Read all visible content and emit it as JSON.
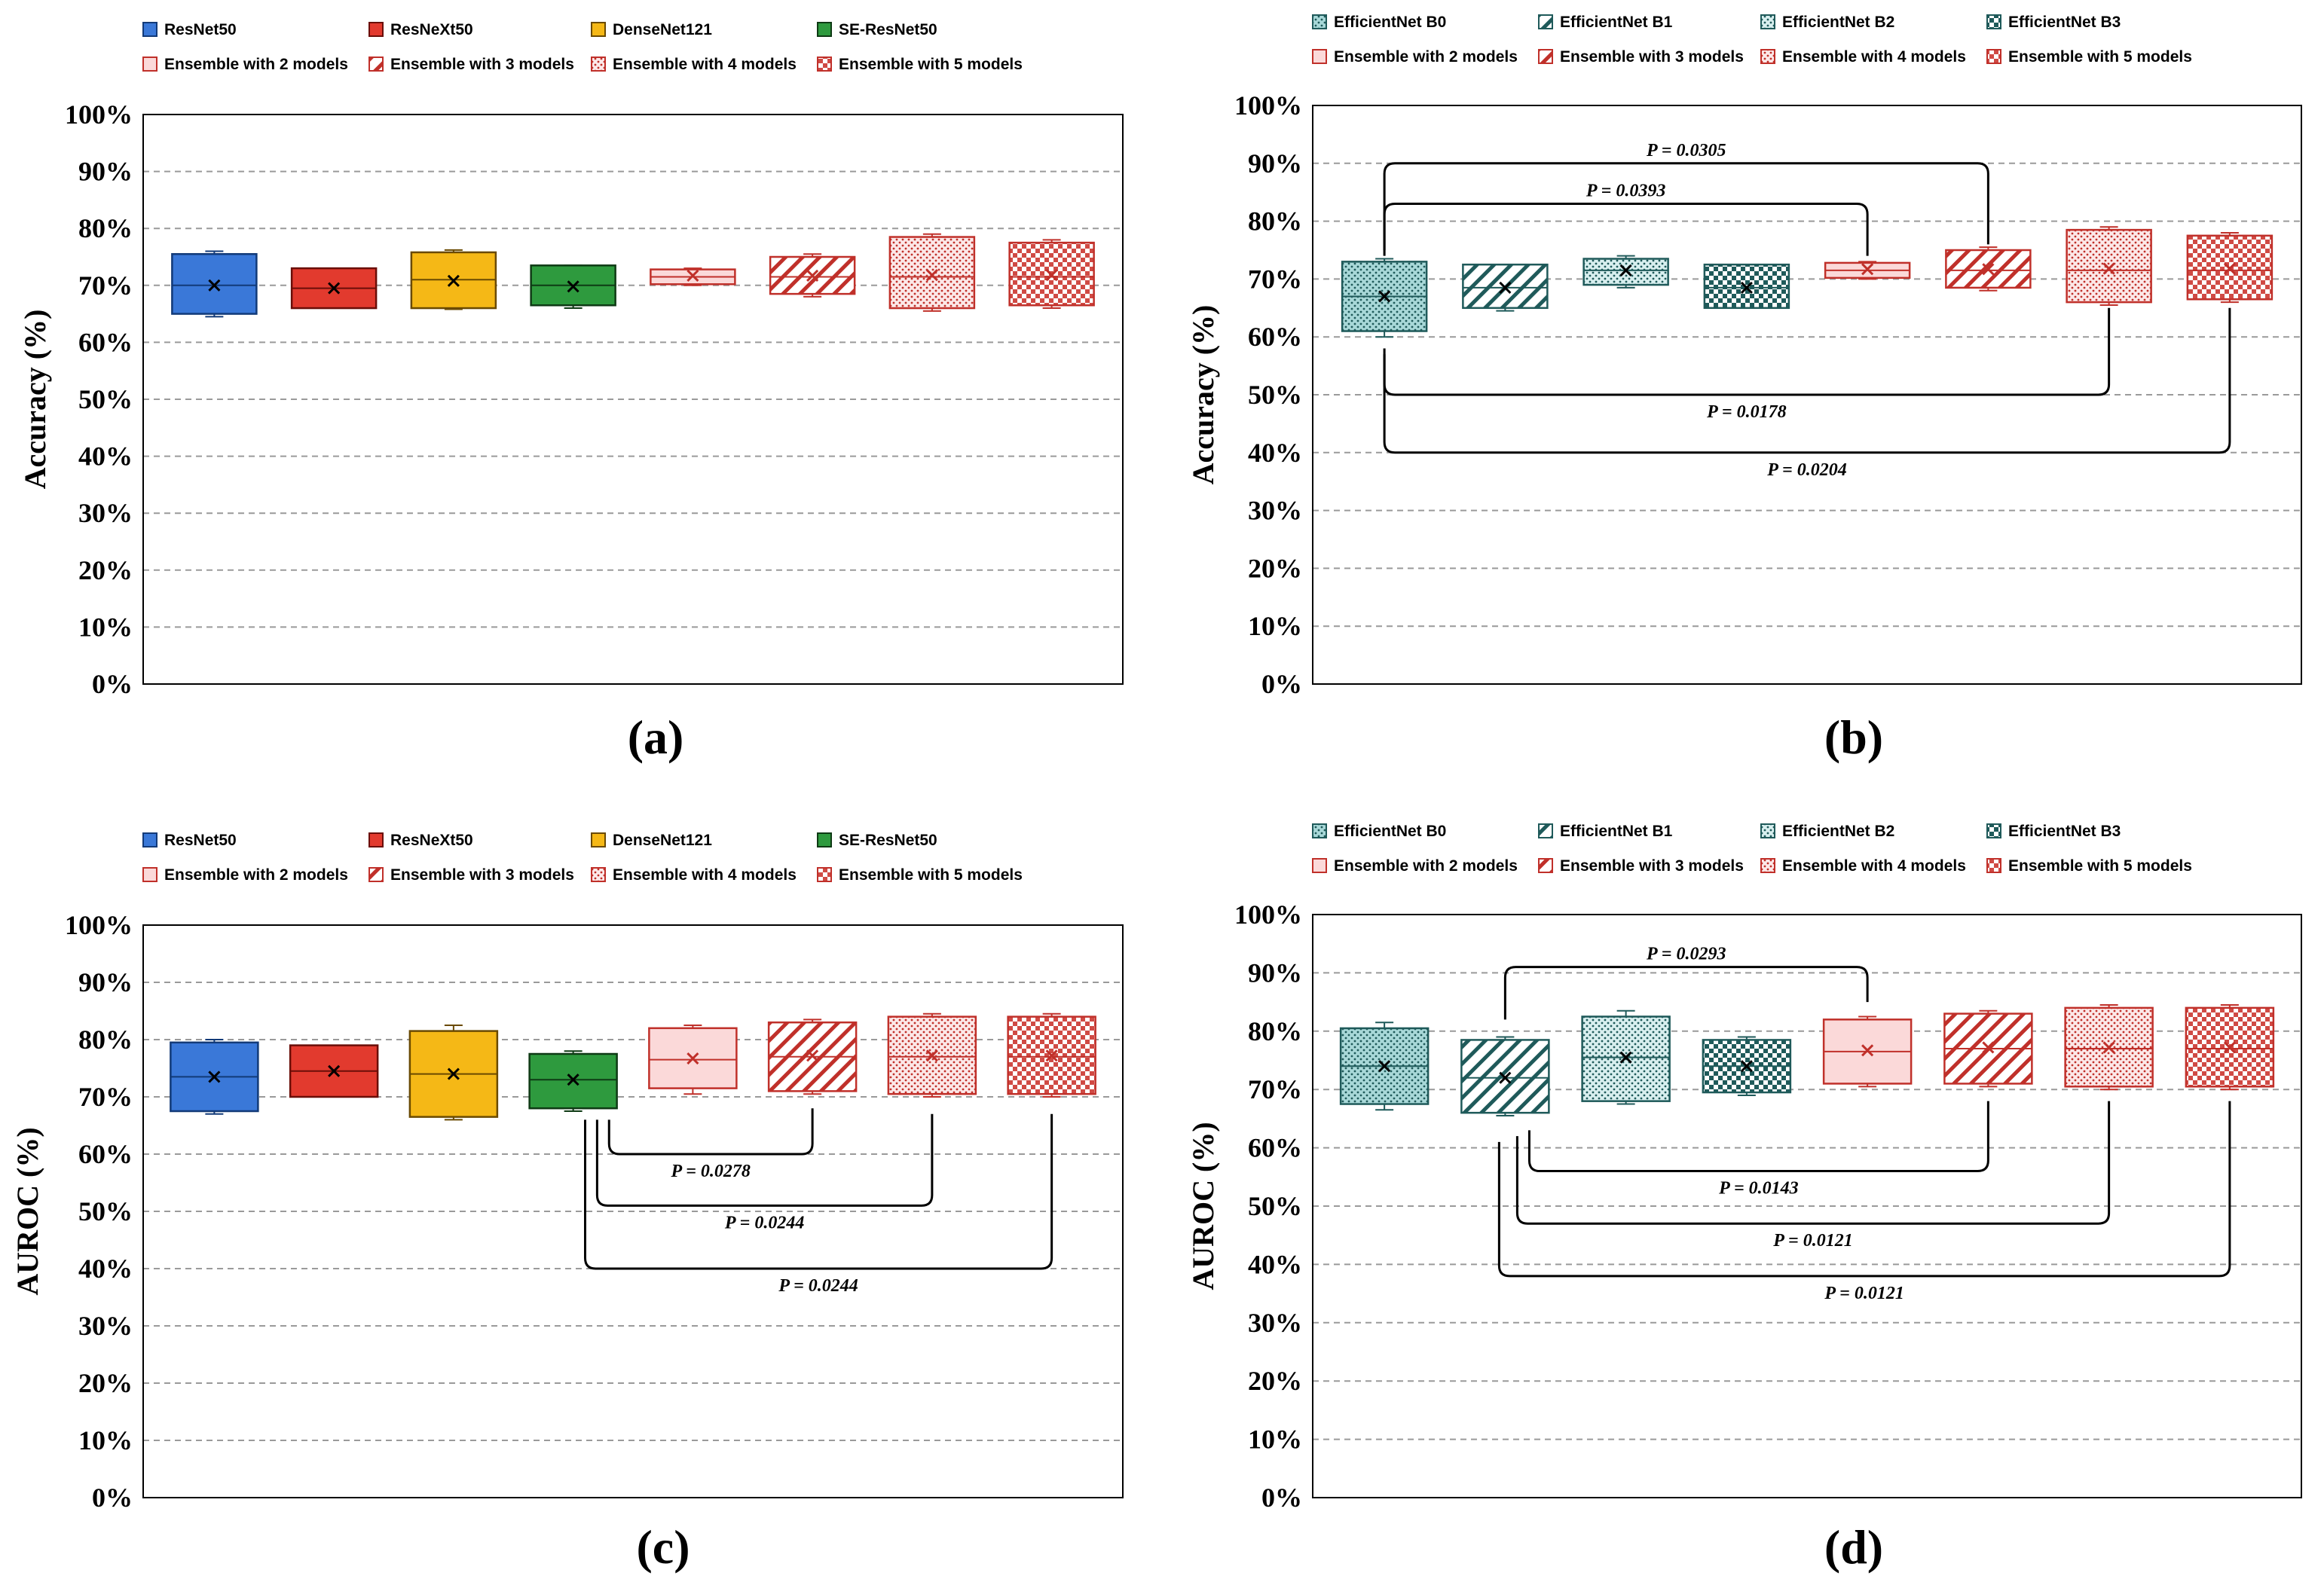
{
  "chart_data": [
    {
      "type": "boxplot",
      "panel": "(a)",
      "ylabel": "Accuracy (%)",
      "ylim": [
        0,
        100
      ],
      "yticks": [
        "0%",
        "10%",
        "20%",
        "30%",
        "40%",
        "50%",
        "60%",
        "70%",
        "80%",
        "90%",
        "100%"
      ],
      "grid": true,
      "legend": [
        "ResNet50",
        "ResNeXt50",
        "DenseNet121",
        "SE-ResNet50",
        "Ensemble with 2 models",
        "Ensemble with 3 models",
        "Ensemble with 4 models",
        "Ensemble with 5 models"
      ],
      "series": [
        {
          "name": "ResNet50",
          "min": 64.5,
          "q1": 65,
          "median": 70,
          "q3": 75.5,
          "max": 76,
          "mean": 70,
          "fill": "#3A78D8",
          "pattern": "solid"
        },
        {
          "name": "ResNeXt50",
          "min": 66,
          "q1": 66,
          "median": 69.5,
          "q3": 73,
          "max": 73,
          "mean": 69.5,
          "fill": "#E23A2E",
          "pattern": "solid"
        },
        {
          "name": "DenseNet121",
          "min": 65.8,
          "q1": 66,
          "median": 71,
          "q3": 75.8,
          "max": 76.2,
          "mean": 70.8,
          "fill": "#F5B816",
          "pattern": "solid"
        },
        {
          "name": "SE-ResNet50",
          "min": 66,
          "q1": 66.5,
          "median": 70,
          "q3": 73.5,
          "max": 73.5,
          "mean": 69.8,
          "fill": "#2E9A3E",
          "pattern": "solid"
        },
        {
          "name": "Ensemble with 2 models",
          "min": 70,
          "q1": 70.2,
          "median": 71.5,
          "q3": 72.8,
          "max": 73,
          "mean": 71.7,
          "fill": "#FBD9D9",
          "pattern": "solid"
        },
        {
          "name": "Ensemble with 3 models",
          "min": 68,
          "q1": 68.5,
          "median": 71.5,
          "q3": 75,
          "max": 75.5,
          "mean": 71.7,
          "fill": "#FFFFFF",
          "pattern": "diag"
        },
        {
          "name": "Ensemble with 4 models",
          "min": 65.5,
          "q1": 66,
          "median": 71.5,
          "q3": 78.5,
          "max": 79,
          "mean": 71.8,
          "fill": "#FFFFFF",
          "pattern": "dots"
        },
        {
          "name": "Ensemble with 5 models",
          "min": 66,
          "q1": 66.5,
          "median": 71.5,
          "q3": 77.5,
          "max": 78,
          "mean": 71.8,
          "fill": "#FFFFFF",
          "pattern": "checker"
        }
      ],
      "annotations": []
    },
    {
      "type": "boxplot",
      "panel": "(b)",
      "ylabel": "Accuracy (%)",
      "ylim": [
        0,
        100
      ],
      "yticks": [
        "0%",
        "10%",
        "20%",
        "30%",
        "40%",
        "50%",
        "60%",
        "70%",
        "80%",
        "90%",
        "100%"
      ],
      "grid": true,
      "legend": [
        "EfficientNet B0",
        "EfficientNet B1",
        "EfficientNet B2",
        "EfficientNet B3",
        "Ensemble with 2 models",
        "Ensemble with 3 models",
        "Ensemble with 4 models",
        "Ensemble with 5 models"
      ],
      "series": [
        {
          "name": "EfficientNet B0",
          "min": 60,
          "q1": 61,
          "median": 67,
          "q3": 73,
          "max": 73.5,
          "mean": 67,
          "fill": "#A8D8D8",
          "pattern": "dots"
        },
        {
          "name": "EfficientNet B1",
          "min": 64.5,
          "q1": 65,
          "median": 68.5,
          "q3": 72.5,
          "max": 72.5,
          "mean": 68.5,
          "fill": "#FFFFFF",
          "pattern": "diag"
        },
        {
          "name": "EfficientNet B2",
          "min": 68.5,
          "q1": 69,
          "median": 71.5,
          "q3": 73.5,
          "max": 74,
          "mean": 71.5,
          "fill": "#C8E8E8",
          "pattern": "dots"
        },
        {
          "name": "EfficientNet B3",
          "min": 65,
          "q1": 65,
          "median": 68.5,
          "q3": 72.5,
          "max": 72.5,
          "mean": 68.5,
          "fill": "#D8EEEE",
          "pattern": "checker"
        },
        {
          "name": "Ensemble with 2 models",
          "min": 70,
          "q1": 70.2,
          "median": 71.5,
          "q3": 72.8,
          "max": 73,
          "mean": 71.7,
          "fill": "#FBD9D9",
          "pattern": "solid"
        },
        {
          "name": "Ensemble with 3 models",
          "min": 68,
          "q1": 68.5,
          "median": 71.5,
          "q3": 75,
          "max": 75.5,
          "mean": 71.7,
          "fill": "#FFFFFF",
          "pattern": "diag"
        },
        {
          "name": "Ensemble with 4 models",
          "min": 65.5,
          "q1": 66,
          "median": 71.5,
          "q3": 78.5,
          "max": 79,
          "mean": 71.8,
          "fill": "#FFFFFF",
          "pattern": "dots"
        },
        {
          "name": "Ensemble with 5 models",
          "min": 66,
          "q1": 66.5,
          "median": 71.5,
          "q3": 77.5,
          "max": 78,
          "mean": 71.8,
          "fill": "#FFFFFF",
          "pattern": "checker"
        }
      ],
      "annotations": [
        {
          "text": "P = 0.0305",
          "from": 0,
          "to": 5,
          "level": 90,
          "dir": "up",
          "end_from": 74,
          "end_to": 76
        },
        {
          "text": "P = 0.0393",
          "from": 0,
          "to": 4,
          "level": 83,
          "dir": "up",
          "end_from": 75,
          "end_to": 74
        },
        {
          "text": "P = 0.0178",
          "from": 0,
          "to": 6,
          "level": 50,
          "dir": "down",
          "end_from": 58,
          "end_to": 65
        },
        {
          "text": "P = 0.0204",
          "from": 0,
          "to": 7,
          "level": 40,
          "dir": "down",
          "end_from": 57,
          "end_to": 65
        }
      ]
    },
    {
      "type": "boxplot",
      "panel": "(c)",
      "ylabel": "AUROC (%)",
      "ylim": [
        0,
        100
      ],
      "yticks": [
        "0%",
        "10%",
        "20%",
        "30%",
        "40%",
        "50%",
        "60%",
        "70%",
        "80%",
        "90%",
        "100%"
      ],
      "grid": true,
      "legend": [
        "ResNet50",
        "ResNeXt50",
        "DenseNet121",
        "SE-ResNet50",
        "Ensemble with 2 models",
        "Ensemble with 3 models",
        "Ensemble with 4 models",
        "Ensemble with 5 models"
      ],
      "series": [
        {
          "name": "ResNet50",
          "min": 67,
          "q1": 67.5,
          "median": 73.5,
          "q3": 79.5,
          "max": 80,
          "mean": 73.5,
          "fill": "#3A78D8",
          "pattern": "solid"
        },
        {
          "name": "ResNeXt50",
          "min": 70,
          "q1": 70,
          "median": 74.5,
          "q3": 79,
          "max": 79,
          "mean": 74.5,
          "fill": "#E23A2E",
          "pattern": "solid"
        },
        {
          "name": "DenseNet121",
          "min": 66,
          "q1": 66.5,
          "median": 74,
          "q3": 81.5,
          "max": 82.5,
          "mean": 74,
          "fill": "#F5B816",
          "pattern": "solid"
        },
        {
          "name": "SE-ResNet50",
          "min": 67.5,
          "q1": 68,
          "median": 73,
          "q3": 77.5,
          "max": 78,
          "mean": 73,
          "fill": "#2E9A3E",
          "pattern": "solid"
        },
        {
          "name": "Ensemble with 2 models",
          "min": 70.5,
          "q1": 71.5,
          "median": 76.5,
          "q3": 82,
          "max": 82.5,
          "mean": 76.7,
          "fill": "#FBD9D9",
          "pattern": "solid"
        },
        {
          "name": "Ensemble with 3 models",
          "min": 70.5,
          "q1": 71,
          "median": 77,
          "q3": 83,
          "max": 83.5,
          "mean": 77.2,
          "fill": "#FFFFFF",
          "pattern": "diag"
        },
        {
          "name": "Ensemble with 4 models",
          "min": 70,
          "q1": 70.5,
          "median": 77,
          "q3": 84,
          "max": 84.5,
          "mean": 77.2,
          "fill": "#FFFFFF",
          "pattern": "dots"
        },
        {
          "name": "Ensemble with 5 models",
          "min": 70,
          "q1": 70.5,
          "median": 77,
          "q3": 84,
          "max": 84.5,
          "mean": 77.2,
          "fill": "#FFFFFF",
          "pattern": "checker"
        }
      ],
      "annotations": [
        {
          "text": "P = 0.0278",
          "from": 3.3,
          "to": 5,
          "level": 60,
          "dir": "down",
          "end_from": 66,
          "end_to": 68
        },
        {
          "text": "P = 0.0244",
          "from": 3.2,
          "to": 6,
          "level": 51,
          "dir": "down",
          "end_from": 66,
          "end_to": 67
        },
        {
          "text": "P = 0.0244",
          "from": 3.1,
          "to": 7,
          "level": 40,
          "dir": "down",
          "end_from": 66,
          "end_to": 67
        }
      ]
    },
    {
      "type": "boxplot",
      "panel": "(d)",
      "ylabel": "AUROC (%)",
      "ylim": [
        0,
        100
      ],
      "yticks": [
        "0%",
        "10%",
        "20%",
        "30%",
        "40%",
        "50%",
        "60%",
        "70%",
        "80%",
        "90%",
        "100%"
      ],
      "grid": true,
      "legend": [
        "EfficientNet B0",
        "EfficientNet B1",
        "EfficientNet B2",
        "EfficientNet B3",
        "Ensemble with 2 models",
        "Ensemble with 3 models",
        "Ensemble with 4 models",
        "Ensemble with 5 models"
      ],
      "series": [
        {
          "name": "EfficientNet B0",
          "min": 66.5,
          "q1": 67.5,
          "median": 74,
          "q3": 80.5,
          "max": 81.5,
          "mean": 74,
          "fill": "#A8D8D8",
          "pattern": "dots"
        },
        {
          "name": "EfficientNet B1",
          "min": 65.5,
          "q1": 66,
          "median": 72,
          "q3": 78.5,
          "max": 79,
          "mean": 72,
          "fill": "#FFFFFF",
          "pattern": "diag"
        },
        {
          "name": "EfficientNet B2",
          "min": 67.5,
          "q1": 68,
          "median": 75.5,
          "q3": 82.5,
          "max": 83.5,
          "mean": 75.5,
          "fill": "#C8E8E8",
          "pattern": "dots"
        },
        {
          "name": "EfficientNet B3",
          "min": 69,
          "q1": 69.5,
          "median": 74,
          "q3": 78.5,
          "max": 79,
          "mean": 74,
          "fill": "#D8EEEE",
          "pattern": "checker"
        },
        {
          "name": "Ensemble with 2 models",
          "min": 70.5,
          "q1": 71,
          "median": 76.5,
          "q3": 82,
          "max": 82.5,
          "mean": 76.7,
          "fill": "#FBD9D9",
          "pattern": "solid"
        },
        {
          "name": "Ensemble with 3 models",
          "min": 70.5,
          "q1": 71,
          "median": 77,
          "q3": 83,
          "max": 83.5,
          "mean": 77.2,
          "fill": "#FFFFFF",
          "pattern": "diag"
        },
        {
          "name": "Ensemble with 4 models",
          "min": 70,
          "q1": 70.5,
          "median": 77,
          "q3": 84,
          "max": 84.5,
          "mean": 77.2,
          "fill": "#FFFFFF",
          "pattern": "dots"
        },
        {
          "name": "Ensemble with 5 models",
          "min": 70,
          "q1": 70.5,
          "median": 77,
          "q3": 84,
          "max": 84.5,
          "mean": 77.2,
          "fill": "#FFFFFF",
          "pattern": "checker"
        }
      ],
      "annotations": [
        {
          "text": "P = 0.0293",
          "from": 1,
          "to": 4,
          "level": 91,
          "dir": "up",
          "end_from": 82,
          "end_to": 85
        },
        {
          "text": "P = 0.0143",
          "from": 1.2,
          "to": 5,
          "level": 56,
          "dir": "down",
          "end_from": 63,
          "end_to": 68
        },
        {
          "text": "P = 0.0121",
          "from": 1.1,
          "to": 6,
          "level": 47,
          "dir": "down",
          "end_from": 62,
          "end_to": 68
        },
        {
          "text": "P = 0.0121",
          "from": 0.95,
          "to": 7,
          "level": 38,
          "dir": "down",
          "end_from": 61,
          "end_to": 68
        }
      ]
    }
  ],
  "colors": {
    "ensemble_stroke": "#C0302A",
    "efficientnet_stroke": "#1F5A5A",
    "grid": "#9A9A9A"
  }
}
